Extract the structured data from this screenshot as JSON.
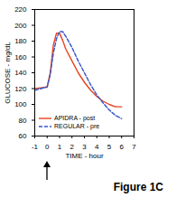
{
  "chart_data": {
    "type": "line",
    "caption": "Figure 1C",
    "x_label": "TIME - hour",
    "y_label": "GLUCOSE - mg/dL",
    "x": [
      -1,
      -0.5,
      0,
      0.25,
      0.5,
      0.75,
      1,
      1.25,
      1.5,
      2,
      2.5,
      3,
      3.5,
      4,
      4.5,
      5,
      5.5,
      6
    ],
    "series": [
      {
        "name": "APIDRA - post",
        "color": "#e8401c",
        "line_style": "solid",
        "values": [
          120,
          121,
          122,
          140,
          175,
          190,
          190,
          181,
          170,
          155,
          140,
          128,
          118,
          110,
          104,
          100,
          97,
          97
        ]
      },
      {
        "name": "REGULAR - pre",
        "color": "#3355cc",
        "line_style": "dashed",
        "values": [
          118,
          120,
          122,
          138,
          165,
          183,
          192,
          192,
          186,
          172,
          155,
          140,
          125,
          112,
          102,
          93,
          86,
          82
        ]
      }
    ],
    "xlim": [
      -1,
      7
    ],
    "xticks": [
      -1,
      0,
      1,
      2,
      3,
      4,
      5,
      6,
      7
    ],
    "ylim": [
      60,
      220
    ],
    "yticks": [
      60,
      80,
      100,
      120,
      140,
      160,
      180,
      200,
      220
    ],
    "grid": false,
    "legend": "lower left"
  }
}
